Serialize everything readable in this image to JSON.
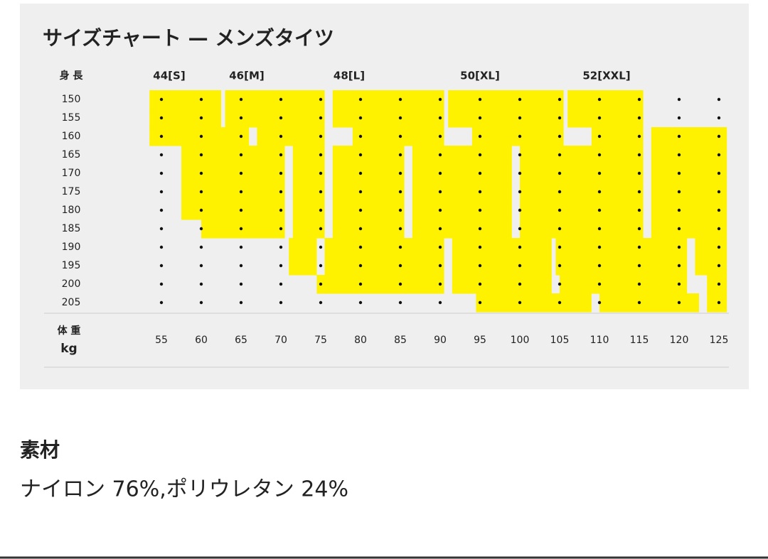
{
  "title": "サイズチャート — メンズタイツ",
  "height_label": "身 長",
  "weight_label": "体 重",
  "weight_unit": "kg",
  "heights": [
    150,
    155,
    160,
    165,
    170,
    175,
    180,
    185,
    190,
    195,
    200,
    205
  ],
  "weights": [
    55,
    60,
    65,
    70,
    75,
    80,
    85,
    90,
    95,
    100,
    105,
    110,
    115,
    120,
    125
  ],
  "sizes": [
    {
      "name": "44[S]",
      "rows": [
        [
          150,
          53.5,
          62.5
        ],
        [
          155,
          53.5,
          62.5
        ],
        [
          160,
          53.5,
          66
        ],
        [
          165,
          57.5,
          70.5
        ],
        [
          170,
          57.5,
          70.5
        ],
        [
          175,
          57.5,
          70.5
        ],
        [
          180,
          57.5,
          70.5
        ],
        [
          185,
          60,
          70.5
        ]
      ]
    },
    {
      "name": "46[M]",
      "rows": [
        [
          150,
          63,
          75.5
        ],
        [
          155,
          63,
          75.5
        ],
        [
          160,
          67,
          75.5
        ],
        [
          165,
          71.5,
          75.5
        ],
        [
          170,
          71.5,
          75.5
        ],
        [
          175,
          71.5,
          75.5
        ],
        [
          180,
          71.5,
          75.5
        ],
        [
          185,
          71.5,
          75.5
        ],
        [
          190,
          71,
          74.5
        ],
        [
          195,
          71,
          74.5
        ]
      ]
    },
    {
      "name": "48[L]",
      "rows": [
        [
          150,
          76.5,
          90.5
        ],
        [
          155,
          76.5,
          90.5
        ],
        [
          160,
          79,
          90.5
        ],
        [
          165,
          76.5,
          85.5
        ],
        [
          170,
          76.5,
          85.5
        ],
        [
          175,
          76.5,
          85.5
        ],
        [
          180,
          76.5,
          85.5
        ],
        [
          185,
          76.5,
          85.5
        ],
        [
          190,
          75.5,
          90.5
        ],
        [
          195,
          75.5,
          90.5
        ],
        [
          200,
          74.5,
          90.5
        ]
      ]
    },
    {
      "name": "50[XL]",
      "rows": [
        [
          150,
          91,
          105.5
        ],
        [
          155,
          91,
          105.5
        ],
        [
          160,
          94,
          105.5
        ],
        [
          165,
          86.5,
          99
        ],
        [
          170,
          86.5,
          99
        ],
        [
          175,
          86.5,
          99
        ],
        [
          180,
          86.5,
          99
        ],
        [
          185,
          86.5,
          99
        ],
        [
          190,
          91.5,
          104
        ],
        [
          195,
          91.5,
          104
        ],
        [
          200,
          91.5,
          104
        ],
        [
          205,
          94.5,
          109
        ]
      ]
    },
    {
      "name": "52[XXL]",
      "rows": [
        [
          150,
          106,
          115.5
        ],
        [
          155,
          106,
          115.5
        ],
        [
          160,
          109,
          115.5
        ],
        [
          165,
          100,
          115.5
        ],
        [
          170,
          100,
          115.5
        ],
        [
          175,
          100,
          115.5
        ],
        [
          180,
          100,
          115.5
        ],
        [
          185,
          100,
          115.5
        ],
        [
          190,
          104.5,
          121
        ],
        [
          195,
          104.5,
          121
        ],
        [
          200,
          105,
          121
        ],
        [
          205,
          110,
          122.5
        ]
      ]
    },
    {
      "rows": [
        [
          160,
          116.5,
          126
        ],
        [
          165,
          116.5,
          126
        ],
        [
          170,
          116.5,
          126
        ],
        [
          175,
          116.5,
          126
        ],
        [
          180,
          116.5,
          126
        ],
        [
          185,
          116.5,
          126
        ],
        [
          190,
          122,
          126
        ],
        [
          195,
          122,
          126
        ],
        [
          200,
          123.5,
          126
        ],
        [
          205,
          123.5,
          126
        ]
      ]
    }
  ],
  "material": {
    "heading": "素材",
    "text": "ナイロン 76%,ポリウレタン 24%"
  }
}
